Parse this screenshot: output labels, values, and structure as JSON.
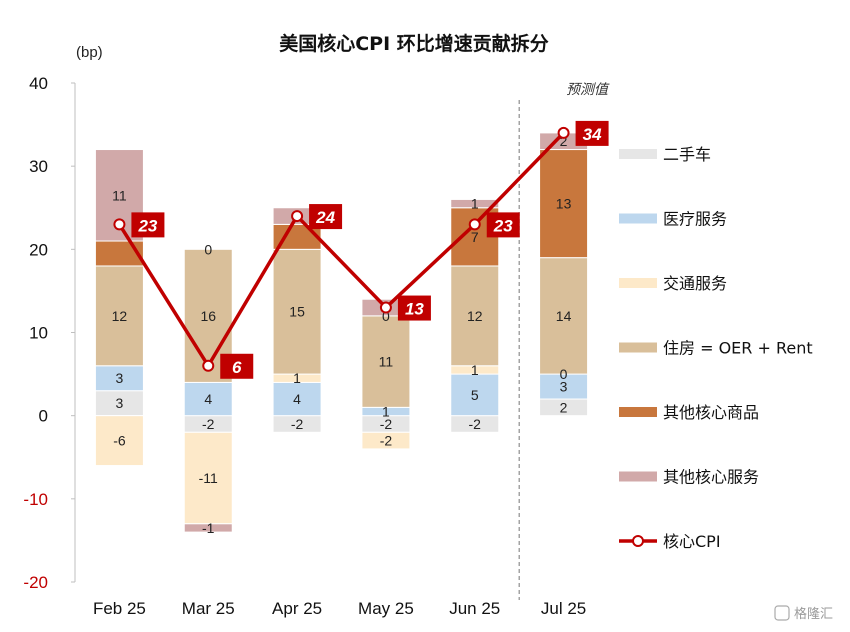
{
  "chart_data": {
    "type": "bar",
    "stacked": true,
    "title": "美国核心CPI 环比增速贡献拆分",
    "unit_label": "(bp)",
    "ylim": [
      -20,
      40
    ],
    "yticks": [
      40,
      30,
      20,
      10,
      0,
      -10,
      -20
    ],
    "categories": [
      "Feb 25",
      "Mar 25",
      "Apr 25",
      "May 25",
      "Jun 25",
      "Jul 25"
    ],
    "forecast_label": "预测值",
    "forecast_categories": [
      "Jul 25"
    ],
    "series": [
      {
        "name": "二手车",
        "color": "#e6e6e6",
        "values": [
          3,
          -2,
          -2,
          -2,
          -2,
          2
        ]
      },
      {
        "name": "医疗服务",
        "color": "#bdd7ee",
        "values": [
          3,
          4,
          4,
          1,
          5,
          3
        ]
      },
      {
        "name": "交通服务",
        "color": "#fde9c9",
        "values": [
          -6,
          -11,
          1,
          -2,
          1,
          0
        ]
      },
      {
        "name": "住房 = OER + Rent",
        "color": "#d9bf9a",
        "values": [
          12,
          16,
          15,
          11,
          12,
          14
        ]
      },
      {
        "name": "其他核心商品",
        "color": "#c8773d",
        "values": [
          3,
          0,
          3,
          0,
          7,
          13
        ]
      },
      {
        "name": "其他核心服务",
        "color": "#d1a9a9",
        "values": [
          11,
          -1,
          2,
          2,
          1,
          2
        ]
      }
    ],
    "line": {
      "name": "核心CPI",
      "color": "#c00000",
      "values": [
        23,
        6,
        24,
        13,
        23,
        34
      ]
    },
    "segment_labels_shown": [
      [
        "3",
        "3",
        "-6",
        "12",
        "",
        "11"
      ],
      [
        "-2",
        "4",
        "-11",
        "16",
        "0",
        "-1"
      ],
      [
        "-2",
        "4",
        "1",
        "15",
        "",
        ""
      ],
      [
        "-2",
        "1",
        "-2",
        "11",
        "0",
        "2"
      ],
      [
        "-2",
        "5",
        "1",
        "12",
        "7",
        "1"
      ],
      [
        "2",
        "3",
        "0",
        "14",
        "13",
        "2"
      ]
    ]
  },
  "watermark": "格隆汇"
}
